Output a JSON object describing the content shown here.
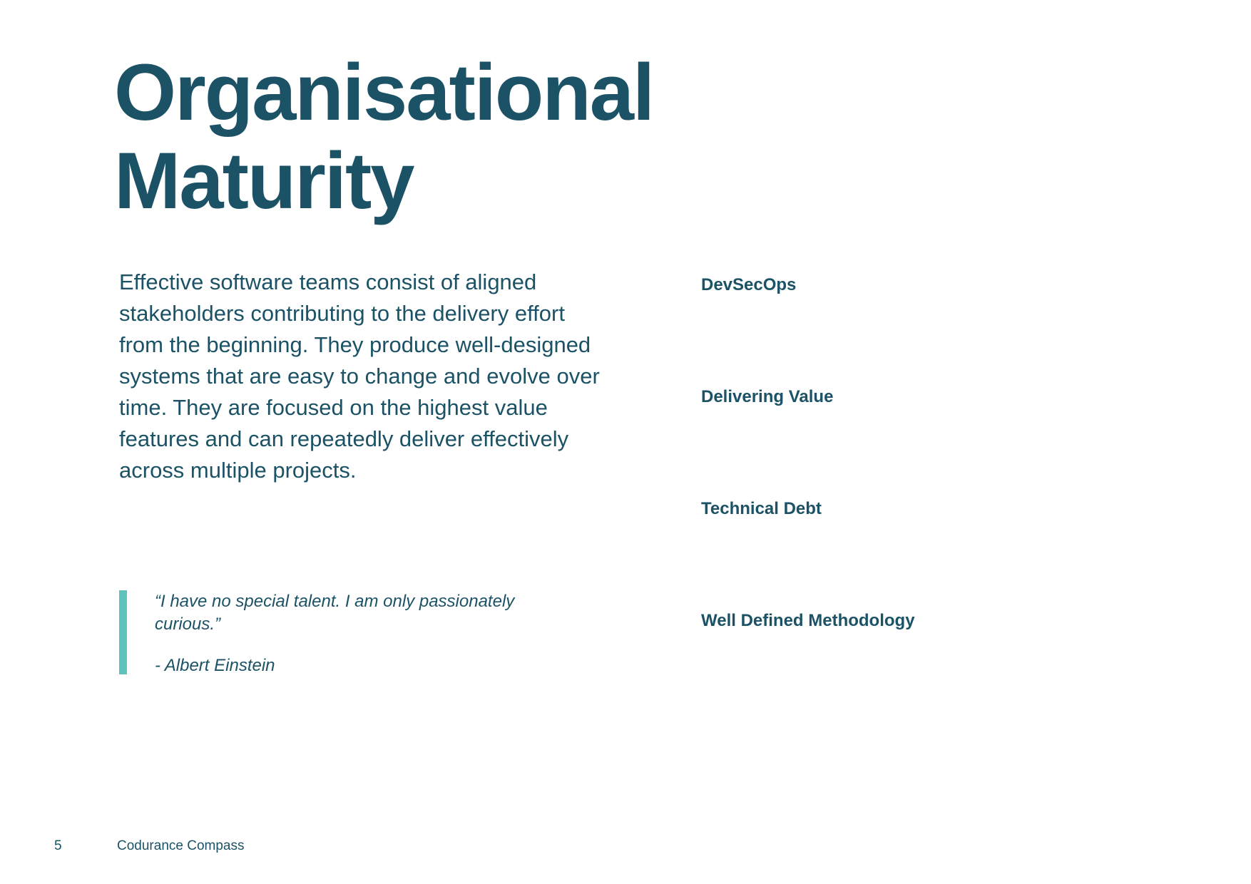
{
  "title": {
    "line1": "Organisational",
    "line2": "Maturity"
  },
  "intro": "Effective software teams consist of aligned stakeholders contributing to the delivery effort from the beginning. They produce well-designed systems that are easy to change and evolve over time. They are focused on the highest value features and can repeatedly deliver effectively across multiple projects.",
  "quote": {
    "text": "“I have no special talent. I am only passionately curious.”",
    "author": "- Albert Einstein"
  },
  "topics": [
    "DevSecOps",
    "Delivering Value",
    "Technical Debt",
    "Well Defined Methodology"
  ],
  "footer": {
    "page_number": "5",
    "document_title": "Codurance Compass"
  },
  "colors": {
    "primary": "#1c5266",
    "accent": "#5fc3bb",
    "background": "#ffffff"
  }
}
